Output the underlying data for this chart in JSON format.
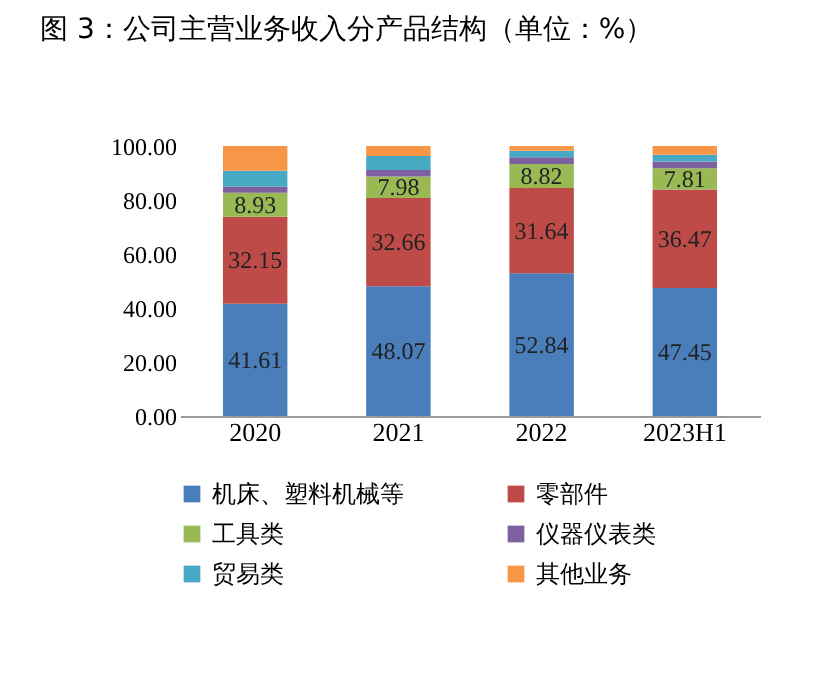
{
  "chart_data": {
    "type": "bar",
    "stacked": true,
    "title": "图 3：公司主营业务收入分产品结构（单位：%）",
    "categories": [
      "2020",
      "2021",
      "2022",
      "2023H1"
    ],
    "series": [
      {
        "name": "机床、塑料机械等",
        "color": "#4a7ebb",
        "values": [
          41.61,
          48.07,
          52.84,
          47.45
        ],
        "value_labels": [
          "41.61",
          "48.07",
          "52.84",
          "47.45"
        ]
      },
      {
        "name": "零部件",
        "color": "#be4b48",
        "values": [
          32.15,
          32.66,
          31.64,
          36.47
        ],
        "value_labels": [
          "32.15",
          "32.66",
          "31.64",
          "36.47"
        ]
      },
      {
        "name": "工具类",
        "color": "#98b954",
        "values": [
          8.93,
          7.98,
          8.82,
          7.81
        ],
        "value_labels": [
          "8.93",
          "7.98",
          "8.82",
          "7.81"
        ]
      },
      {
        "name": "仪器仪表类",
        "color": "#7d60a0",
        "values": [
          2.3,
          2.4,
          2.5,
          2.5
        ]
      },
      {
        "name": "贸易类",
        "color": "#46aac5",
        "values": [
          5.8,
          5.2,
          2.4,
          2.5
        ]
      },
      {
        "name": "其他业务",
        "color": "#f79646",
        "values": [
          9.2,
          3.7,
          1.8,
          3.3
        ]
      }
    ],
    "ylim": [
      0,
      100
    ],
    "yticks": [
      {
        "value": 0,
        "label": "0.00"
      },
      {
        "value": 20,
        "label": "20.00"
      },
      {
        "value": 40,
        "label": "40.00"
      },
      {
        "value": 60,
        "label": "60.00"
      },
      {
        "value": 80,
        "label": "80.00"
      },
      {
        "value": 100,
        "label": "100.00"
      }
    ],
    "grid": false,
    "legend": "bottom"
  }
}
